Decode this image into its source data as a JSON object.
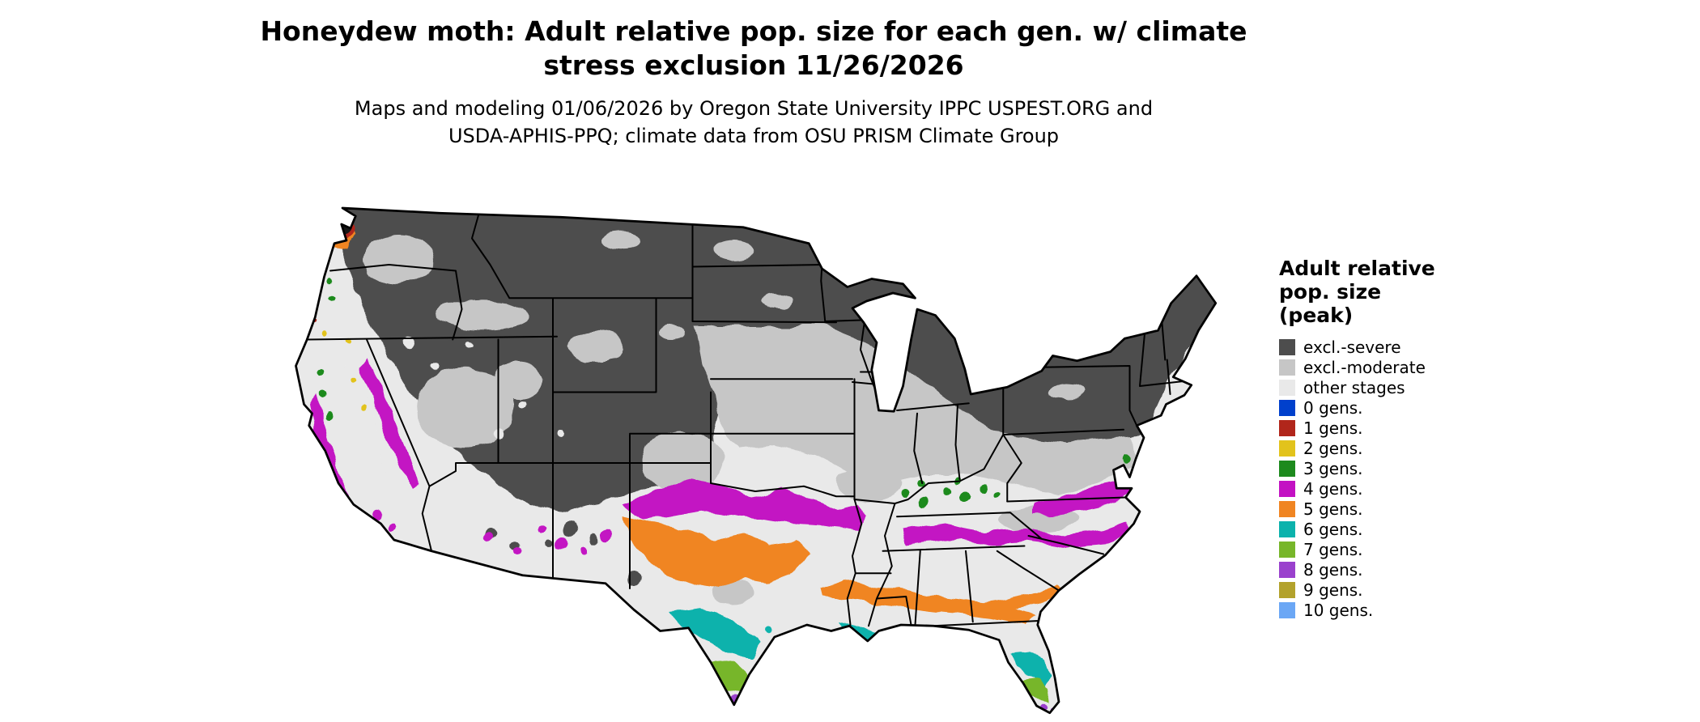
{
  "title": {
    "line1": "Honeydew moth: Adult relative pop. size for each gen. w/ climate",
    "line2": "stress exclusion 11/26/2026"
  },
  "subtitle": {
    "line1": "Maps and modeling 01/06/2026 by Oregon State University IPPC USPEST.ORG and",
    "line2": "USDA-APHIS-PPQ; climate data from OSU PRISM Climate Group"
  },
  "legend": {
    "title_lines": [
      "Adult relative",
      "pop. size",
      "(peak)"
    ],
    "items": [
      {
        "label": "excl.-severe",
        "color": "#4d4d4d"
      },
      {
        "label": "excl.-moderate",
        "color": "#c6c6c6"
      },
      {
        "label": "other stages",
        "color": "#e9e9e9"
      },
      {
        "label": "0 gens.",
        "color": "#0040cc"
      },
      {
        "label": "1 gens.",
        "color": "#b1261b"
      },
      {
        "label": "2 gens.",
        "color": "#e2c31c"
      },
      {
        "label": "3 gens.",
        "color": "#1d8a1d"
      },
      {
        "label": "4 gens.",
        "color": "#c312c3"
      },
      {
        "label": "5 gens.",
        "color": "#f08522"
      },
      {
        "label": "6 gens.",
        "color": "#0cb2ac"
      },
      {
        "label": "7 gens.",
        "color": "#77b62a"
      },
      {
        "label": "8 gens.",
        "color": "#9a41cd"
      },
      {
        "label": "9 gens.",
        "color": "#b3a22c"
      },
      {
        "label": "10 gens.",
        "color": "#6ba7f5"
      }
    ]
  },
  "map": {
    "name": "Contiguous US map of honeydew moth adult relative population size by generation class",
    "outline_color": "#000000",
    "hotspot_core_color": "#151515"
  }
}
